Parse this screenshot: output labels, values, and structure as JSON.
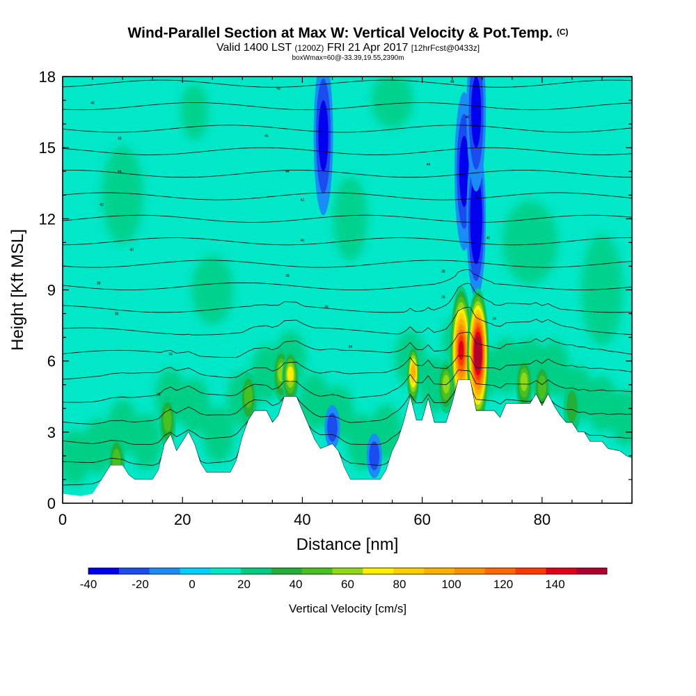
{
  "chart_data": {
    "type": "heatmap",
    "title": "Wind-Parallel Section at Max W: Vertical Velocity & Pot.Temp.",
    "title_mark": "(C)",
    "subtitle_parts": [
      "Valid 1400 LST",
      "(1200Z)",
      "FRI 21 Apr 2017",
      "[12hrFcst@0433z]"
    ],
    "sub_subtitle": "boxWmax=60@-33.39,19.55,2390m",
    "xlabel": "Distance [nm]",
    "ylabel": "Height [Kft MSL]",
    "xlim": [
      0,
      95
    ],
    "ylim": [
      0,
      18
    ],
    "x_ticks": [
      0,
      20,
      40,
      60,
      80
    ],
    "y_ticks": [
      0,
      3,
      6,
      9,
      12,
      15,
      18
    ],
    "colorbar": {
      "label": "Vertical Velocity [cm/s]",
      "min": -40,
      "max": 150,
      "step": 10,
      "tick_values": [
        -40,
        -20,
        0,
        20,
        40,
        60,
        80,
        100,
        120,
        140
      ],
      "colors": [
        "#0000ee",
        "#1a4cf0",
        "#1a8cf5",
        "#00d0ff",
        "#00e8c8",
        "#00cc80",
        "#22b038",
        "#48c020",
        "#90d818",
        "#fff000",
        "#ffd000",
        "#ffb000",
        "#ff9000",
        "#ff6800",
        "#ff3800",
        "#e00018",
        "#b00030"
      ]
    },
    "terrain_kft": [
      [
        0,
        0.4
      ],
      [
        3,
        0.3
      ],
      [
        5,
        0.4
      ],
      [
        6,
        0.8
      ],
      [
        7,
        1.2
      ],
      [
        8,
        1.6
      ],
      [
        10,
        1.6
      ],
      [
        11,
        1.2
      ],
      [
        12,
        1.0
      ],
      [
        15,
        1.0
      ],
      [
        16,
        1.4
      ],
      [
        17,
        2.5
      ],
      [
        18,
        2.9
      ],
      [
        19,
        2.2
      ],
      [
        20,
        2.6
      ],
      [
        21,
        3.0
      ],
      [
        22,
        2.5
      ],
      [
        23,
        1.7
      ],
      [
        24,
        1.3
      ],
      [
        28,
        1.3
      ],
      [
        29,
        1.8
      ],
      [
        30,
        2.8
      ],
      [
        31,
        3.5
      ],
      [
        32,
        3.9
      ],
      [
        34,
        3.9
      ],
      [
        35,
        3.4
      ],
      [
        36,
        3.7
      ],
      [
        37,
        4.5
      ],
      [
        39,
        4.5
      ],
      [
        40,
        3.9
      ],
      [
        41,
        3.3
      ],
      [
        42,
        2.7
      ],
      [
        43,
        2.3
      ],
      [
        45,
        2.5
      ],
      [
        46,
        2.2
      ],
      [
        47,
        1.5
      ],
      [
        48,
        1.0
      ],
      [
        53,
        1.0
      ],
      [
        54,
        1.4
      ],
      [
        55,
        2.2
      ],
      [
        56,
        2.7
      ],
      [
        57,
        3.5
      ],
      [
        58,
        4.5
      ],
      [
        59,
        3.5
      ],
      [
        60,
        3.5
      ],
      [
        61,
        4.4
      ],
      [
        62,
        3.4
      ],
      [
        64,
        3.4
      ],
      [
        65,
        4.2
      ],
      [
        66,
        5.2
      ],
      [
        68,
        5.2
      ],
      [
        69,
        3.9
      ],
      [
        72,
        3.9
      ],
      [
        73,
        3.6
      ],
      [
        74,
        4.2
      ],
      [
        78,
        4.2
      ],
      [
        79,
        4.6
      ],
      [
        80,
        4.1
      ],
      [
        81,
        4.6
      ],
      [
        82,
        4.1
      ],
      [
        83,
        3.7
      ],
      [
        84,
        3.4
      ],
      [
        85,
        3.4
      ],
      [
        86,
        3.0
      ],
      [
        87,
        3.0
      ],
      [
        88,
        2.6
      ],
      [
        90,
        2.6
      ],
      [
        91,
        2.3
      ],
      [
        93,
        2.2
      ],
      [
        94,
        2.0
      ],
      [
        95,
        1.9
      ]
    ],
    "updraft_cores": [
      {
        "x": 9,
        "z": 1.7,
        "w": 30
      },
      {
        "x": 17.5,
        "z": 3.4,
        "w": 30
      },
      {
        "x": 31,
        "z": 4.4,
        "w": 30
      },
      {
        "x": 36.5,
        "z": 5.4,
        "w": 45
      },
      {
        "x": 38,
        "z": 5.3,
        "w": 50
      },
      {
        "x": 58.5,
        "z": 5.4,
        "w": 70
      },
      {
        "x": 64,
        "z": 4.9,
        "w": 40
      },
      {
        "x": 66.5,
        "z": 6.3,
        "w": 110
      },
      {
        "x": 69.3,
        "z": 6.2,
        "w": 140
      },
      {
        "x": 77,
        "z": 5.0,
        "w": 40
      },
      {
        "x": 80,
        "z": 4.8,
        "w": 30
      },
      {
        "x": 85,
        "z": 4.0,
        "w": 25
      }
    ],
    "downdraft_cores": [
      {
        "x": 43.5,
        "z": 15.5,
        "w": -30
      },
      {
        "x": 45,
        "z": 3.2,
        "w": -20
      },
      {
        "x": 52,
        "z": 2.0,
        "w": -20
      },
      {
        "x": 67,
        "z": 14.0,
        "w": -30
      },
      {
        "x": 69,
        "z": 12.0,
        "w": -40
      },
      {
        "x": 69,
        "z": 16.5,
        "w": -30
      }
    ],
    "theta_contour_labels": [
      {
        "x": 5,
        "z": 16.9,
        "text": "48"
      },
      {
        "x": 9.5,
        "z": 15.4,
        "text": "48"
      },
      {
        "x": 9.5,
        "z": 14.0,
        "text": "44"
      },
      {
        "x": 6.5,
        "z": 12.6,
        "text": "42"
      },
      {
        "x": 11.5,
        "z": 10.7,
        "text": "40"
      },
      {
        "x": 6,
        "z": 9.3,
        "text": "38"
      },
      {
        "x": 9,
        "z": 8.0,
        "text": "36"
      },
      {
        "x": 18,
        "z": 6.3,
        "text": "34"
      },
      {
        "x": 16,
        "z": 4.6,
        "text": "28"
      },
      {
        "x": 36,
        "z": 17.5,
        "text": "48"
      },
      {
        "x": 34,
        "z": 15.5,
        "text": "46"
      },
      {
        "x": 37.5,
        "z": 14.0,
        "text": "44"
      },
      {
        "x": 40,
        "z": 12.8,
        "text": "42"
      },
      {
        "x": 40,
        "z": 11.1,
        "text": "40"
      },
      {
        "x": 37.5,
        "z": 9.6,
        "text": "38"
      },
      {
        "x": 44,
        "z": 8.3,
        "text": "36"
      },
      {
        "x": 48,
        "z": 6.6,
        "text": "34"
      },
      {
        "x": 65,
        "z": 17.8,
        "text": "48"
      },
      {
        "x": 67.5,
        "z": 16.3,
        "text": "46"
      },
      {
        "x": 61,
        "z": 14.3,
        "text": "44"
      },
      {
        "x": 69,
        "z": 13.0,
        "text": "42"
      },
      {
        "x": 71,
        "z": 11.2,
        "text": "40"
      },
      {
        "x": 63.5,
        "z": 9.8,
        "text": "38"
      },
      {
        "x": 63.5,
        "z": 8.7,
        "text": "36"
      },
      {
        "x": 72,
        "z": 7.8,
        "text": "34"
      }
    ]
  }
}
